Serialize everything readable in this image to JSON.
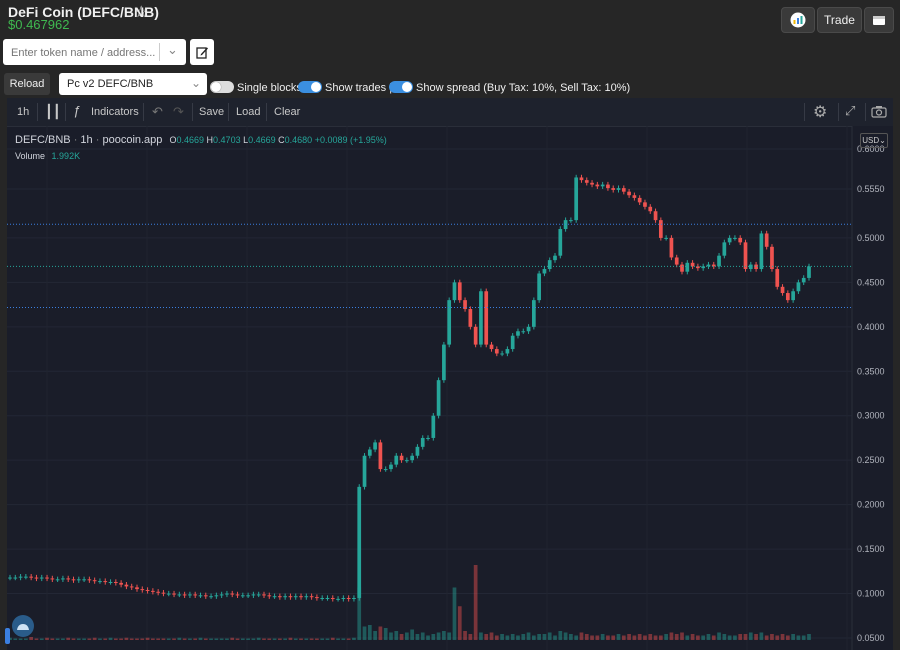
{
  "header": {
    "title": "DeFi Coin (DEFC/BNB)",
    "price": "$0.467962",
    "trade_label": "Trade"
  },
  "search": {
    "placeholder": "Enter token name / address..."
  },
  "controls": {
    "reload_label": "Reload",
    "pair_selected": "Pc v2 DEFC/BNB",
    "toggles": [
      {
        "label": "Single blocks",
        "on": false
      },
      {
        "label": "Show trades |",
        "on": true
      },
      {
        "label": "Show spread (Buy Tax: 10%, Sell Tax: 10%)",
        "on": true
      }
    ]
  },
  "chart_toolbar": {
    "interval": "1h",
    "indicators_label": "Indicators",
    "save_label": "Save",
    "load_label": "Load",
    "clear_label": "Clear",
    "currency": "USD"
  },
  "legend": {
    "symbol": "DEFC/BNB",
    "interval": "1h",
    "source": "poocoin.app",
    "o_label": "O",
    "o": "0.4669",
    "h_label": "H",
    "h": "0.4703",
    "l_label": "L",
    "l": "0.4669",
    "c_label": "C",
    "c": "0.4680",
    "change": "+0.0089 (+1.95%)",
    "volume_label": "Volume",
    "volume": "1.992K"
  },
  "colors": {
    "up": "#26a69a",
    "down": "#ef5350",
    "price_tag": "#26a69a",
    "level_tag": "#3b7fdf"
  },
  "chart_data": {
    "type": "candlestick",
    "ylim": [
      0.05,
      0.6
    ],
    "y_ticks": [
      "0.6000",
      "0.5550",
      "0.5000",
      "0.4500",
      "0.4000",
      "0.3500",
      "0.3000",
      "0.2500",
      "0.2000",
      "0.1500",
      "0.1000",
      "0.0500"
    ],
    "price_lines": [
      {
        "label": "0.5154",
        "value": 0.5154
      },
      {
        "label": "0.4680",
        "value": 0.468
      },
      {
        "label": "0.4217",
        "value": 0.4217
      }
    ],
    "close_series": [
      0.118,
      0.118,
      0.119,
      0.119,
      0.118,
      0.117,
      0.118,
      0.117,
      0.116,
      0.116,
      0.117,
      0.116,
      0.115,
      0.116,
      0.116,
      0.115,
      0.114,
      0.114,
      0.113,
      0.113,
      0.112,
      0.11,
      0.108,
      0.107,
      0.105,
      0.104,
      0.103,
      0.102,
      0.101,
      0.1,
      0.1,
      0.099,
      0.099,
      0.098,
      0.099,
      0.098,
      0.098,
      0.097,
      0.097,
      0.098,
      0.099,
      0.1,
      0.099,
      0.098,
      0.098,
      0.098,
      0.099,
      0.099,
      0.098,
      0.097,
      0.097,
      0.096,
      0.097,
      0.096,
      0.097,
      0.096,
      0.097,
      0.096,
      0.095,
      0.095,
      0.095,
      0.094,
      0.094,
      0.095,
      0.094,
      0.095,
      0.22,
      0.255,
      0.262,
      0.27,
      0.24,
      0.24,
      0.245,
      0.255,
      0.25,
      0.25,
      0.255,
      0.265,
      0.275,
      0.275,
      0.3,
      0.34,
      0.38,
      0.43,
      0.45,
      0.43,
      0.42,
      0.4,
      0.38,
      0.44,
      0.38,
      0.375,
      0.37,
      0.37,
      0.375,
      0.39,
      0.395,
      0.395,
      0.4,
      0.43,
      0.46,
      0.465,
      0.475,
      0.48,
      0.51,
      0.52,
      0.52,
      0.568,
      0.565,
      0.562,
      0.56,
      0.558,
      0.56,
      0.556,
      0.554,
      0.556,
      0.552,
      0.548,
      0.545,
      0.54,
      0.535,
      0.53,
      0.52,
      0.5,
      0.5,
      0.478,
      0.47,
      0.462,
      0.472,
      0.468,
      0.466,
      0.468,
      0.47,
      0.468,
      0.48,
      0.495,
      0.5,
      0.5,
      0.495,
      0.465,
      0.47,
      0.465,
      0.505,
      0.49,
      0.465,
      0.445,
      0.438,
      0.43,
      0.44,
      0.45,
      0.455,
      0.468
    ],
    "volume_series": [
      3,
      2,
      2,
      2,
      4,
      2,
      2,
      3,
      2,
      2,
      2,
      3,
      2,
      2,
      2,
      2,
      3,
      2,
      2,
      3,
      2,
      2,
      3,
      2,
      2,
      2,
      3,
      2,
      2,
      2,
      2,
      2,
      3,
      2,
      2,
      2,
      3,
      2,
      2,
      2,
      2,
      2,
      3,
      2,
      2,
      2,
      2,
      3,
      2,
      2,
      2,
      2,
      2,
      3,
      2,
      2,
      2,
      2,
      2,
      2,
      2,
      3,
      2,
      2,
      2,
      3,
      70,
      18,
      20,
      12,
      18,
      16,
      10,
      12,
      8,
      10,
      14,
      8,
      10,
      6,
      8,
      10,
      12,
      10,
      70,
      45,
      12,
      8,
      100,
      10,
      8,
      10,
      6,
      8,
      6,
      8,
      6,
      8,
      10,
      6,
      8,
      8,
      10,
      6,
      12,
      10,
      8,
      6,
      10,
      8,
      6,
      6,
      8,
      6,
      6,
      8,
      6,
      8,
      6,
      8,
      6,
      8,
      6,
      6,
      8,
      10,
      8,
      10,
      6,
      8,
      6,
      6,
      8,
      6,
      10,
      8,
      6,
      6,
      8,
      8,
      10,
      8,
      10,
      6,
      8,
      6,
      8,
      6,
      8,
      6,
      6,
      8
    ]
  }
}
